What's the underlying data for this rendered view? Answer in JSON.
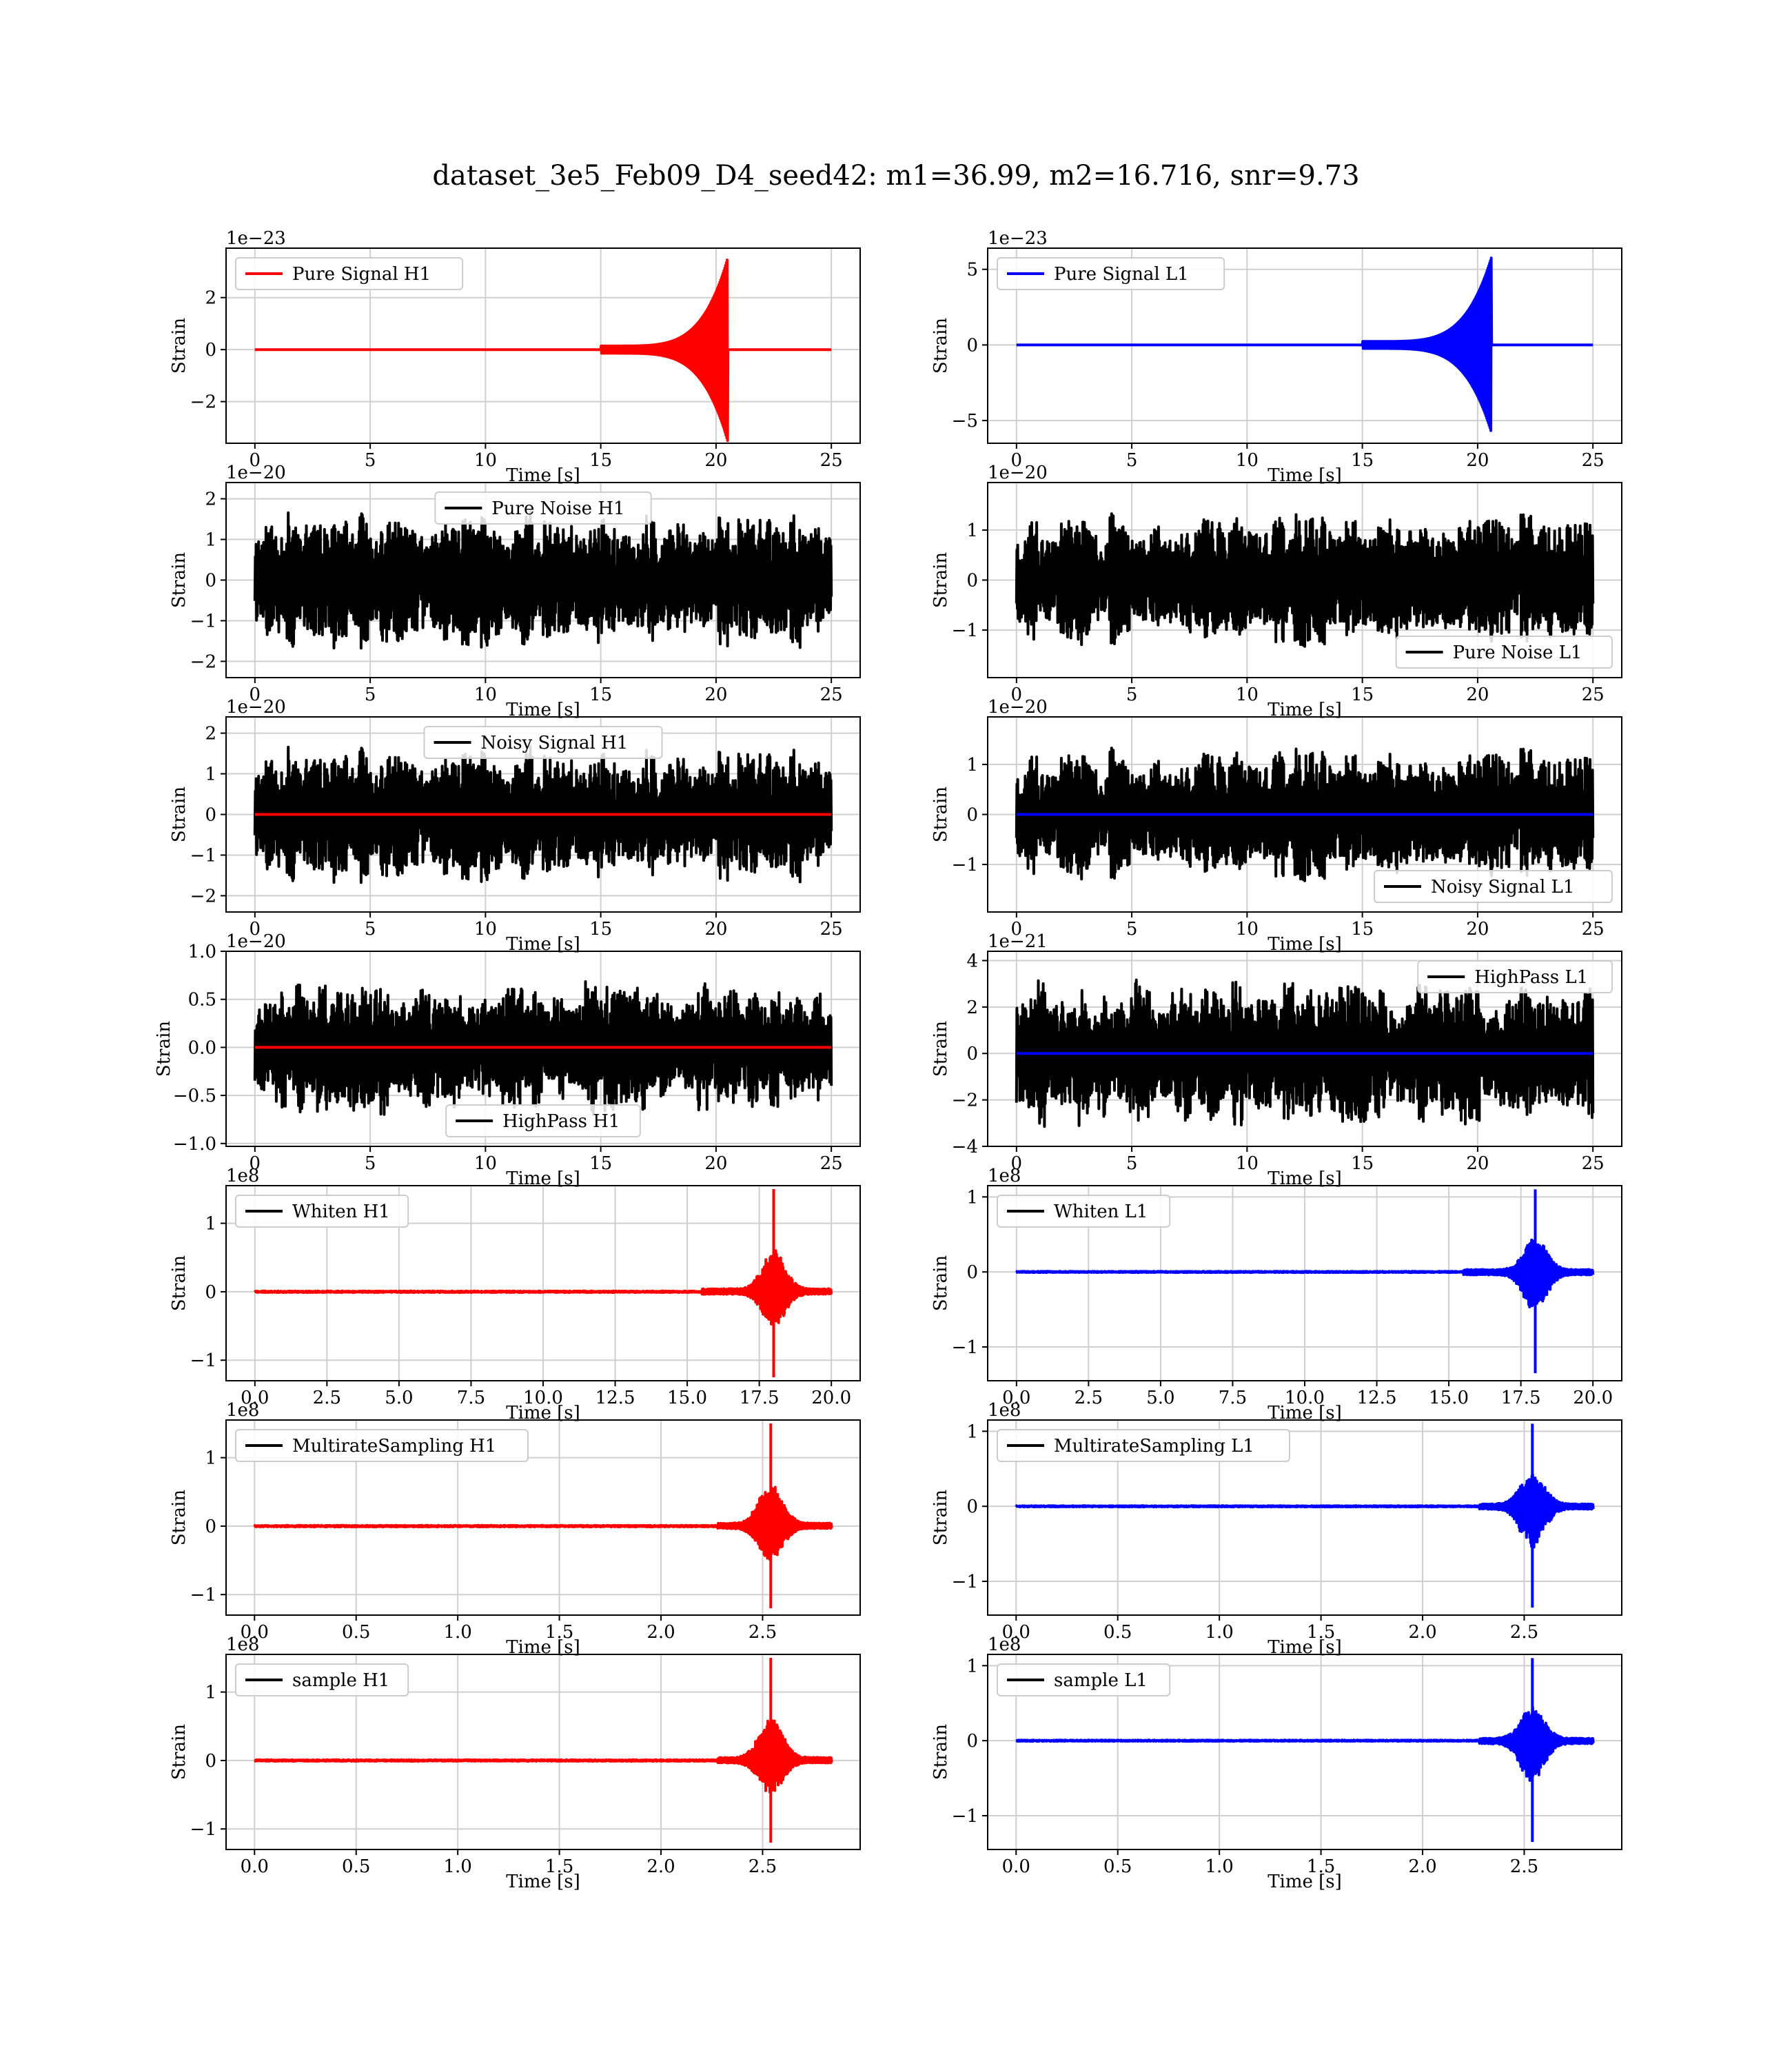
{
  "title": "dataset_3e5_Feb09_D4_seed42: m1=36.99, m2=16.716, snr=9.73",
  "colors": {
    "red": "#ff0000",
    "blue": "#0000ff",
    "black": "#000000",
    "grid": "#cfcfcf"
  },
  "chart_data": [
    {
      "id": "p0",
      "type": "line",
      "xlabel": "Time [s]",
      "ylabel": "Strain",
      "exponent": "1e−23",
      "x_ticks": [
        "0",
        "5",
        "10",
        "15",
        "20",
        "25"
      ],
      "xlim": [
        -1.25,
        26.25
      ],
      "y_ticks": [
        "−2",
        "0",
        "2"
      ],
      "ylim": [
        -3.6,
        3.9
      ],
      "legend": "Pure Signal H1",
      "legend_color": "#ff0000",
      "legend_pos": "upper left",
      "series": [
        {
          "kind": "chirp",
          "color": "#ff0000",
          "x_start": 0,
          "x_end": 25,
          "t_peak": 20.5,
          "amp": 3.5,
          "onset": 15,
          "post": 0.0
        }
      ]
    },
    {
      "id": "p1",
      "type": "line",
      "xlabel": "Time [s]",
      "ylabel": "Strain",
      "exponent": "1e−23",
      "x_ticks": [
        "0",
        "5",
        "10",
        "15",
        "20",
        "25"
      ],
      "xlim": [
        -1.25,
        26.25
      ],
      "y_ticks": [
        "−5",
        "0",
        "5"
      ],
      "ylim": [
        -6.5,
        6.4
      ],
      "legend": "Pure Signal L1",
      "legend_color": "#0000ff",
      "legend_pos": "upper left",
      "series": [
        {
          "kind": "chirp",
          "color": "#0000ff",
          "x_start": 0,
          "x_end": 25,
          "t_peak": 20.6,
          "amp": 5.8,
          "onset": 15,
          "post": 0.0
        }
      ]
    },
    {
      "id": "p2",
      "type": "line",
      "xlabel": "Time [s]",
      "ylabel": "Strain",
      "exponent": "1e−20",
      "x_ticks": [
        "0",
        "5",
        "10",
        "15",
        "20",
        "25"
      ],
      "xlim": [
        -1.25,
        26.25
      ],
      "y_ticks": [
        "−2",
        "−1",
        "0",
        "1",
        "2"
      ],
      "ylim": [
        -2.4,
        2.4
      ],
      "legend": "Pure Noise H1",
      "legend_color": "#000000",
      "legend_pos": "upper center",
      "series": [
        {
          "kind": "noise",
          "color": "#000000",
          "x_start": 0,
          "x_end": 25,
          "amp": 1.7,
          "seed": 11
        }
      ]
    },
    {
      "id": "p3",
      "type": "line",
      "xlabel": "Time [s]",
      "ylabel": "Strain",
      "exponent": "1e−20",
      "x_ticks": [
        "0",
        "5",
        "10",
        "15",
        "20",
        "25"
      ],
      "xlim": [
        -1.25,
        26.25
      ],
      "y_ticks": [
        "−1",
        "0",
        "1"
      ],
      "ylim": [
        -1.95,
        1.95
      ],
      "legend": "Pure Noise L1",
      "legend_color": "#000000",
      "legend_pos": "lower right",
      "series": [
        {
          "kind": "noise",
          "color": "#000000",
          "x_start": 0,
          "x_end": 25,
          "amp": 1.35,
          "seed": 23
        }
      ]
    },
    {
      "id": "p4",
      "type": "line",
      "xlabel": "Time [s]",
      "ylabel": "Strain",
      "exponent": "1e−20",
      "x_ticks": [
        "0",
        "5",
        "10",
        "15",
        "20",
        "25"
      ],
      "xlim": [
        -1.25,
        26.25
      ],
      "y_ticks": [
        "−2",
        "−1",
        "0",
        "1",
        "2"
      ],
      "ylim": [
        -2.4,
        2.4
      ],
      "legend": "Noisy Signal H1",
      "legend_color": "#000000",
      "legend_pos": "upper center",
      "series": [
        {
          "kind": "noise",
          "color": "#000000",
          "x_start": 0,
          "x_end": 25,
          "amp": 1.7,
          "seed": 11
        },
        {
          "kind": "flat",
          "color": "#ff0000",
          "x_start": 0,
          "x_end": 25
        }
      ]
    },
    {
      "id": "p5",
      "type": "line",
      "xlabel": "Time [s]",
      "ylabel": "Strain",
      "exponent": "1e−20",
      "x_ticks": [
        "0",
        "5",
        "10",
        "15",
        "20",
        "25"
      ],
      "xlim": [
        -1.25,
        26.25
      ],
      "y_ticks": [
        "−1",
        "0",
        "1"
      ],
      "ylim": [
        -1.95,
        1.95
      ],
      "legend": "Noisy Signal L1",
      "legend_color": "#000000",
      "legend_pos": "lower right",
      "series": [
        {
          "kind": "noise",
          "color": "#000000",
          "x_start": 0,
          "x_end": 25,
          "amp": 1.35,
          "seed": 23
        },
        {
          "kind": "flat",
          "color": "#0000ff",
          "x_start": 0,
          "x_end": 25
        }
      ]
    },
    {
      "id": "p6",
      "type": "line",
      "xlabel": "Time [s]",
      "ylabel": "Strain",
      "exponent": "1e−20",
      "x_ticks": [
        "0",
        "5",
        "10",
        "15",
        "20",
        "25"
      ],
      "xlim": [
        -1.25,
        26.25
      ],
      "y_ticks": [
        "−1.0",
        "−0.5",
        "0.0",
        "0.5",
        "1.0"
      ],
      "ylim": [
        -1.03,
        1.0
      ],
      "legend": "HighPass H1",
      "legend_color": "#000000",
      "legend_pos": "lower center",
      "series": [
        {
          "kind": "noise",
          "color": "#000000",
          "x_start": 0,
          "x_end": 25,
          "amp": 0.72,
          "seed": 37
        },
        {
          "kind": "flat",
          "color": "#ff0000",
          "x_start": 0,
          "x_end": 25
        }
      ]
    },
    {
      "id": "p7",
      "type": "line",
      "xlabel": "Time [s]",
      "ylabel": "Strain",
      "exponent": "1e−21",
      "x_ticks": [
        "0",
        "5",
        "10",
        "15",
        "20",
        "25"
      ],
      "xlim": [
        -1.25,
        26.25
      ],
      "y_ticks": [
        "−4",
        "−2",
        "0",
        "2",
        "4"
      ],
      "ylim": [
        -4.0,
        4.4
      ],
      "legend": "HighPass L1",
      "legend_color": "#000000",
      "legend_pos": "upper right",
      "series": [
        {
          "kind": "noise",
          "color": "#000000",
          "x_start": 0,
          "x_end": 25,
          "amp": 3.2,
          "seed": 41
        },
        {
          "kind": "flat",
          "color": "#0000ff",
          "x_start": 0,
          "x_end": 25
        }
      ]
    },
    {
      "id": "p8",
      "type": "line",
      "xlabel": "Time [s]",
      "ylabel": "Strain",
      "exponent": "1e8",
      "x_ticks": [
        "0.0",
        "2.5",
        "5.0",
        "7.5",
        "10.0",
        "12.5",
        "15.0",
        "17.5",
        "20.0"
      ],
      "xlim": [
        -1.0,
        21.0
      ],
      "y_ticks": [
        "−1",
        "0",
        "1"
      ],
      "ylim": [
        -1.3,
        1.55
      ],
      "legend": "Whiten H1",
      "legend_color": "#000000",
      "legend_pos": "upper left",
      "series": [
        {
          "kind": "burst",
          "color": "#ff0000",
          "x_start": 0,
          "x_end": 20,
          "t_peak": 18.0,
          "amp": 1.5,
          "amp_neg": 1.25,
          "width": 1.2,
          "onset": 15.5
        }
      ]
    },
    {
      "id": "p9",
      "type": "line",
      "xlabel": "Time [s]",
      "ylabel": "Strain",
      "exponent": "1e8",
      "x_ticks": [
        "0.0",
        "2.5",
        "5.0",
        "7.5",
        "10.0",
        "12.5",
        "15.0",
        "17.5",
        "20.0"
      ],
      "xlim": [
        -1.0,
        21.0
      ],
      "y_ticks": [
        "−1",
        "0",
        "1"
      ],
      "ylim": [
        -1.45,
        1.15
      ],
      "legend": "Whiten L1",
      "legend_color": "#000000",
      "legend_pos": "upper left",
      "series": [
        {
          "kind": "burst",
          "color": "#0000ff",
          "x_start": 0,
          "x_end": 20,
          "t_peak": 18.0,
          "amp": 1.1,
          "amp_neg": 1.35,
          "width": 1.2,
          "onset": 15.5
        }
      ]
    },
    {
      "id": "p10",
      "type": "line",
      "xlabel": "Time [s]",
      "ylabel": "Strain",
      "exponent": "1e8",
      "x_ticks": [
        "0.0",
        "0.5",
        "1.0",
        "1.5",
        "2.0",
        "2.5"
      ],
      "xlim": [
        -0.14,
        2.98
      ],
      "y_ticks": [
        "−1",
        "0",
        "1"
      ],
      "ylim": [
        -1.3,
        1.55
      ],
      "legend": "MultirateSampling H1",
      "legend_color": "#000000",
      "legend_pos": "upper left",
      "series": [
        {
          "kind": "burst",
          "color": "#ff0000",
          "x_start": 0,
          "x_end": 2.84,
          "t_peak": 2.54,
          "amp": 1.5,
          "amp_neg": 1.2,
          "width": 0.18,
          "onset": 2.28
        }
      ]
    },
    {
      "id": "p11",
      "type": "line",
      "xlabel": "Time [s]",
      "ylabel": "Strain",
      "exponent": "1e8",
      "x_ticks": [
        "0.0",
        "0.5",
        "1.0",
        "1.5",
        "2.0",
        "2.5"
      ],
      "xlim": [
        -0.14,
        2.98
      ],
      "y_ticks": [
        "−1",
        "0",
        "1"
      ],
      "ylim": [
        -1.45,
        1.15
      ],
      "legend": "MultirateSampling L1",
      "legend_color": "#000000",
      "legend_pos": "upper left",
      "series": [
        {
          "kind": "burst",
          "color": "#0000ff",
          "x_start": 0,
          "x_end": 2.84,
          "t_peak": 2.54,
          "amp": 1.1,
          "amp_neg": 1.35,
          "width": 0.18,
          "onset": 2.28
        }
      ]
    },
    {
      "id": "p12",
      "type": "line",
      "xlabel": "Time [s]",
      "ylabel": "Strain",
      "exponent": "1e8",
      "x_ticks": [
        "0.0",
        "0.5",
        "1.0",
        "1.5",
        "2.0",
        "2.5"
      ],
      "xlim": [
        -0.14,
        2.98
      ],
      "y_ticks": [
        "−1",
        "0",
        "1"
      ],
      "ylim": [
        -1.3,
        1.55
      ],
      "legend": "sample H1",
      "legend_color": "#000000",
      "legend_pos": "upper left",
      "series": [
        {
          "kind": "burst",
          "color": "#ff0000",
          "x_start": 0,
          "x_end": 2.84,
          "t_peak": 2.54,
          "amp": 1.5,
          "amp_neg": 1.2,
          "width": 0.18,
          "onset": 2.28
        }
      ]
    },
    {
      "id": "p13",
      "type": "line",
      "xlabel": "Time [s]",
      "ylabel": "Strain",
      "exponent": "1e8",
      "x_ticks": [
        "0.0",
        "0.5",
        "1.0",
        "1.5",
        "2.0",
        "2.5"
      ],
      "xlim": [
        -0.14,
        2.98
      ],
      "y_ticks": [
        "−1",
        "0",
        "1"
      ],
      "ylim": [
        -1.45,
        1.15
      ],
      "legend": "sample L1",
      "legend_color": "#000000",
      "legend_pos": "upper left",
      "series": [
        {
          "kind": "burst",
          "color": "#0000ff",
          "x_start": 0,
          "x_end": 2.84,
          "t_peak": 2.54,
          "amp": 1.1,
          "amp_neg": 1.35,
          "width": 0.18,
          "onset": 2.28
        }
      ]
    }
  ]
}
